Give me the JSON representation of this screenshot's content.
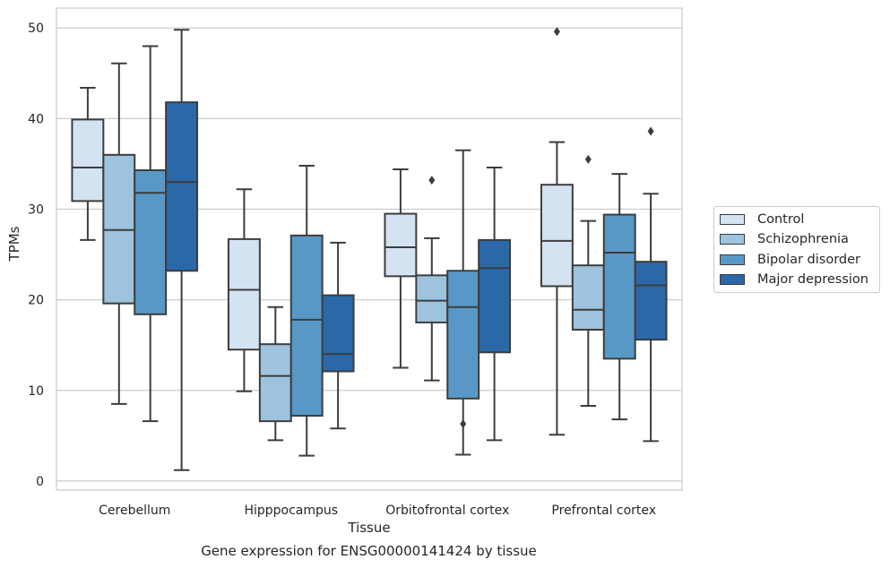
{
  "chart_data": {
    "type": "box",
    "xlabel": "Tissue",
    "ylabel": "TPMs",
    "caption": "Gene expression for ENSG00000141424 by tissue",
    "ylim": [
      -1,
      52.2
    ],
    "yticks": [
      0,
      10,
      20,
      30,
      40,
      50
    ],
    "grid": "horizontal",
    "legend_placement": "right",
    "categories": [
      "Cerebellum",
      "Hipppocampus",
      "Orbitofrontal cortex",
      "Prefrontal cortex"
    ],
    "series": [
      {
        "name": "Control",
        "color": "#d4e3f2",
        "boxes": [
          {
            "whisker_low": 26.6,
            "q1": 30.9,
            "median": 34.6,
            "q3": 39.9,
            "whisker_high": 43.4,
            "outliers": []
          },
          {
            "whisker_low": 9.9,
            "q1": 14.5,
            "median": 21.1,
            "q3": 26.7,
            "whisker_high": 32.2,
            "outliers": []
          },
          {
            "whisker_low": 12.5,
            "q1": 22.6,
            "median": 25.8,
            "q3": 29.5,
            "whisker_high": 34.4,
            "outliers": []
          },
          {
            "whisker_low": 5.1,
            "q1": 21.5,
            "median": 26.5,
            "q3": 32.7,
            "whisker_high": 37.4,
            "outliers": [
              49.6
            ]
          }
        ]
      },
      {
        "name": "Schizophrenia",
        "color": "#9dc3df",
        "boxes": [
          {
            "whisker_low": 8.5,
            "q1": 19.6,
            "median": 27.7,
            "q3": 36.0,
            "whisker_high": 46.1,
            "outliers": []
          },
          {
            "whisker_low": 4.5,
            "q1": 6.6,
            "median": 11.6,
            "q3": 15.1,
            "whisker_high": 19.2,
            "outliers": []
          },
          {
            "whisker_low": 11.1,
            "q1": 17.5,
            "median": 19.9,
            "q3": 22.7,
            "whisker_high": 26.8,
            "outliers": [
              33.2
            ]
          },
          {
            "whisker_low": 8.3,
            "q1": 16.7,
            "median": 18.9,
            "q3": 23.8,
            "whisker_high": 28.7,
            "outliers": [
              35.5
            ]
          }
        ]
      },
      {
        "name": "Bipolar disorder",
        "color": "#5898c7",
        "boxes": [
          {
            "whisker_low": 6.6,
            "q1": 18.4,
            "median": 31.8,
            "q3": 34.3,
            "whisker_high": 48.0,
            "outliers": []
          },
          {
            "whisker_low": 2.8,
            "q1": 7.2,
            "median": 17.8,
            "q3": 27.1,
            "whisker_high": 34.8,
            "outliers": []
          },
          {
            "whisker_low": 2.9,
            "q1": 9.1,
            "median": 19.2,
            "q3": 23.2,
            "whisker_high": 36.5,
            "outliers": [
              6.3
            ]
          },
          {
            "whisker_low": 6.8,
            "q1": 13.5,
            "median": 25.2,
            "q3": 29.4,
            "whisker_high": 33.9,
            "outliers": []
          }
        ]
      },
      {
        "name": "Major depression",
        "color": "#2a68a8",
        "boxes": [
          {
            "whisker_low": 1.2,
            "q1": 23.2,
            "median": 33.0,
            "q3": 41.8,
            "whisker_high": 49.8,
            "outliers": []
          },
          {
            "whisker_low": 5.8,
            "q1": 12.1,
            "median": 14.0,
            "q3": 20.5,
            "whisker_high": 26.3,
            "outliers": []
          },
          {
            "whisker_low": 4.5,
            "q1": 14.2,
            "median": 23.5,
            "q3": 26.6,
            "whisker_high": 34.6,
            "outliers": []
          },
          {
            "whisker_low": 4.4,
            "q1": 15.6,
            "median": 21.6,
            "q3": 24.2,
            "whisker_high": 31.7,
            "outliers": [
              38.6
            ]
          }
        ]
      }
    ]
  }
}
